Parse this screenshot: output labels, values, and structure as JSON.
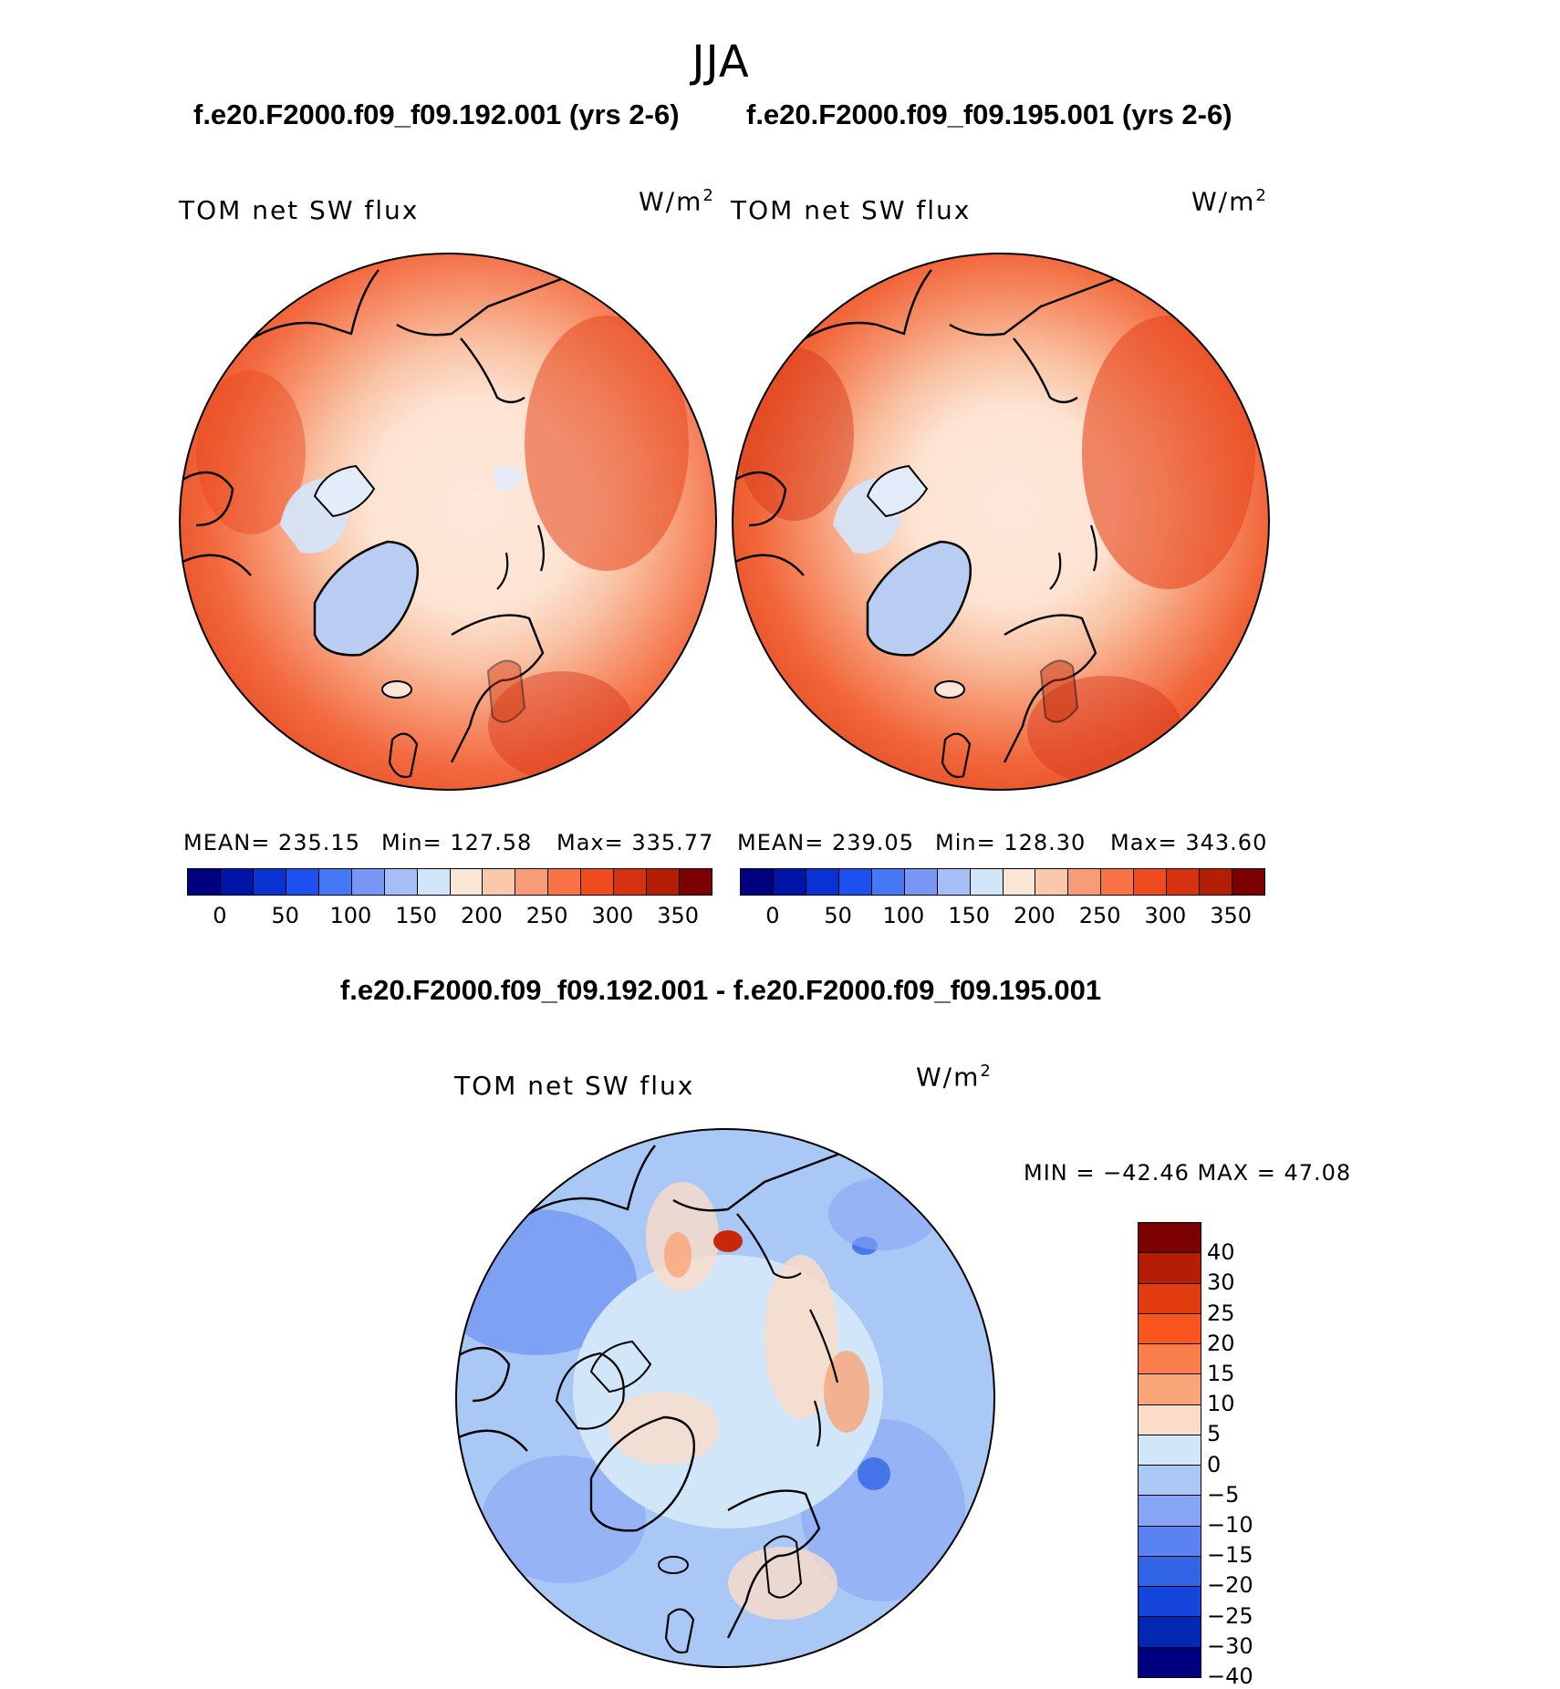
{
  "figure": {
    "season": "JJA",
    "diff_title": "f.e20.F2000.f09_f09.192.001 - f.e20.F2000.f09_f09.195.001"
  },
  "panels": [
    {
      "run_title": "f.e20.F2000.f09_f09.192.001 (yrs 2-6)",
      "variable": "TOM net SW flux",
      "units_base": "W/m",
      "units_exp": "2",
      "stats": {
        "mean": "MEAN= 235.15",
        "min": "Min= 127.58",
        "max": "Max= 335.77"
      }
    },
    {
      "run_title": "f.e20.F2000.f09_f09.195.001 (yrs 2-6)",
      "variable": "TOM net SW flux",
      "units_base": "W/m",
      "units_exp": "2",
      "stats": {
        "mean": "MEAN= 239.05",
        "min": "Min= 128.30",
        "max": "Max= 343.60"
      }
    },
    {
      "variable": "TOM net SW flux",
      "units_base": "W/m",
      "units_exp": "2",
      "stats": {
        "minmax": "MIN = −42.46 MAX =   47.08"
      }
    }
  ],
  "colorbar_abs": {
    "colors": [
      "#000080",
      "#0014a8",
      "#0a32d2",
      "#1e50f0",
      "#4678f5",
      "#7896f5",
      "#a5bef5",
      "#d2e6fa",
      "#fae6d7",
      "#fac8aa",
      "#fa9b78",
      "#fa7346",
      "#f04b1e",
      "#d7320f",
      "#b41e05",
      "#7d0000"
    ],
    "tick_labels": [
      "0",
      "50",
      "100",
      "150",
      "200",
      "250",
      "300",
      "350"
    ]
  },
  "colorbar_diff": {
    "colors": [
      "#7d0000",
      "#b41e05",
      "#e13c0f",
      "#fa551e",
      "#fa7d4b",
      "#faa578",
      "#fadcc8",
      "#d2e6fa",
      "#aac8f5",
      "#87a5f5",
      "#5a82f0",
      "#3264e6",
      "#1446dc",
      "#0528b4",
      "#000080"
    ],
    "labels": [
      "40",
      "30",
      "25",
      "20",
      "15",
      "10",
      "5",
      "0",
      "−5",
      "−10",
      "−15",
      "−20",
      "−25",
      "−30",
      "−40"
    ]
  },
  "chart_data": [
    {
      "type": "heatmap",
      "projection": "north polar stereographic",
      "title": "f.e20.F2000.f09_f09.192.001 (yrs 2-6)",
      "variable": "TOM net SW flux",
      "units": "W/m2",
      "mean": 235.15,
      "min": 127.58,
      "max": 335.77,
      "levels": [
        0,
        50,
        100,
        150,
        200,
        250,
        300,
        350
      ]
    },
    {
      "type": "heatmap",
      "projection": "north polar stereographic",
      "title": "f.e20.F2000.f09_f09.195.001 (yrs 2-6)",
      "variable": "TOM net SW flux",
      "units": "W/m2",
      "mean": 239.05,
      "min": 128.3,
      "max": 343.6,
      "levels": [
        0,
        50,
        100,
        150,
        200,
        250,
        300,
        350
      ]
    },
    {
      "type": "heatmap",
      "projection": "north polar stereographic",
      "title": "f.e20.F2000.f09_f09.192.001 - f.e20.F2000.f09_f09.195.001",
      "variable": "TOM net SW flux",
      "units": "W/m2",
      "min": -42.46,
      "max": 47.08,
      "levels": [
        -40,
        -30,
        -25,
        -20,
        -15,
        -10,
        -5,
        0,
        5,
        10,
        15,
        20,
        25,
        30,
        40
      ]
    }
  ]
}
